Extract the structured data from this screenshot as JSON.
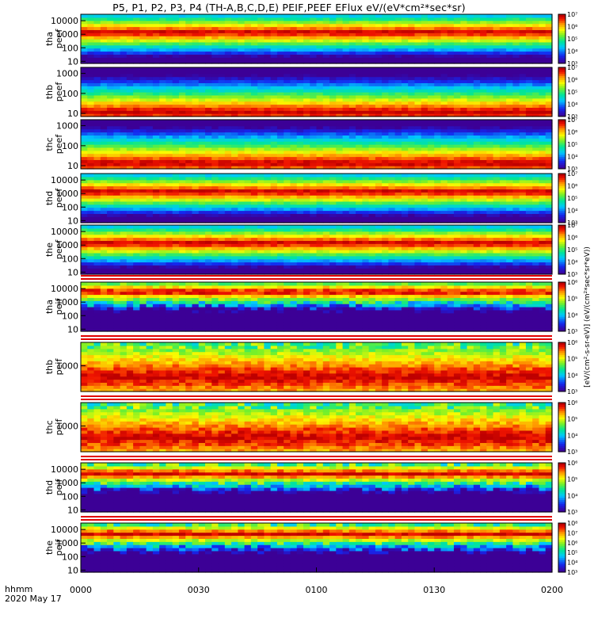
{
  "title": "P5, P1, P2, P3, P4 (TH-A,B,C,D,E) PEIF,PEEF EFlux eV/(eV*cm²*sec*sr)",
  "time_axis": {
    "label_line1": "hhmm",
    "label_line2": "2020 May 17",
    "ticks": [
      "0000",
      "0030",
      "0100",
      "0130",
      "0200"
    ]
  },
  "colorbar_label": "[eV/(cm²-s-sr-eV)] (eV/(cm²*sec*sr*eV))",
  "chart_data": [
    {
      "type": "heatmap",
      "probe": "tha",
      "product": "peef",
      "ylabel": [
        "tha",
        "peef"
      ],
      "yscale": "log",
      "ylim": [
        7,
        30000
      ],
      "yticks": [
        "10",
        "100",
        "1000",
        "10000"
      ],
      "zlim_exp": [
        3,
        7
      ],
      "colorbar_ticks": [
        "10³",
        "10⁴",
        "10⁵",
        "10⁶",
        "10⁷"
      ],
      "peak_energy_eV": 1500
    },
    {
      "type": "heatmap",
      "probe": "thb",
      "product": "peef",
      "ylabel": [
        "thb",
        "peef"
      ],
      "yscale": "log",
      "ylim": [
        7,
        2000
      ],
      "yticks": [
        "10",
        "100",
        "1000"
      ],
      "zlim_exp": [
        3,
        7
      ],
      "colorbar_ticks": [
        "10³",
        "10⁴",
        "10⁵",
        "10⁶",
        "10⁷"
      ],
      "peak_energy_eV": 12
    },
    {
      "type": "heatmap",
      "probe": "thc",
      "product": "peef",
      "ylabel": [
        "thc",
        "peef"
      ],
      "yscale": "log",
      "ylim": [
        7,
        2000
      ],
      "yticks": [
        "10",
        "100",
        "1000"
      ],
      "zlim_exp": [
        3,
        7
      ],
      "colorbar_ticks": [
        "10³",
        "10⁴",
        "10⁵",
        "10⁶",
        "10⁷"
      ],
      "peak_energy_eV": 14
    },
    {
      "type": "heatmap",
      "probe": "thd",
      "product": "peef",
      "ylabel": [
        "thd",
        "peef"
      ],
      "yscale": "log",
      "ylim": [
        7,
        30000
      ],
      "yticks": [
        "10",
        "100",
        "1000",
        "10000"
      ],
      "zlim_exp": [
        3,
        7
      ],
      "colorbar_ticks": [
        "10³",
        "10⁴",
        "10⁵",
        "10⁶",
        "10⁷"
      ],
      "peak_energy_eV": 1500
    },
    {
      "type": "heatmap",
      "probe": "the",
      "product": "peef",
      "ylabel": [
        "the",
        "peef"
      ],
      "yscale": "log",
      "ylim": [
        7,
        30000
      ],
      "yticks": [
        "10",
        "100",
        "1000",
        "10000"
      ],
      "zlim_exp": [
        3,
        7
      ],
      "colorbar_ticks": [
        "10³",
        "10⁴",
        "10⁵",
        "10⁶",
        "10⁷"
      ],
      "peak_energy_eV": 1500
    },
    {
      "type": "heatmap",
      "probe": "tha",
      "product": "peif",
      "ylabel": [
        "tha",
        "peif"
      ],
      "yscale": "log",
      "ylim": [
        7,
        30000
      ],
      "yticks": [
        "10",
        "100",
        "1000",
        "10000"
      ],
      "zlim_exp": [
        3,
        6
      ],
      "colorbar_ticks": [
        "10³",
        "10⁴",
        "10⁵",
        "10⁶"
      ],
      "peak_energy_eV": 6000
    },
    {
      "type": "heatmap",
      "probe": "thb",
      "product": "peif",
      "ylabel": [
        "thb",
        "peif"
      ],
      "yscale": "log",
      "ylim": [
        300,
        3000
      ],
      "yticks": [
        "1000"
      ],
      "zlim_exp": [
        3,
        6
      ],
      "colorbar_ticks": [
        "10³",
        "10⁴",
        "10⁵",
        "10⁶"
      ],
      "peak_energy_eV": 600
    },
    {
      "type": "heatmap",
      "probe": "thc",
      "product": "peif",
      "ylabel": [
        "thc",
        "peif"
      ],
      "yscale": "log",
      "ylim": [
        300,
        3000
      ],
      "yticks": [
        "1000"
      ],
      "zlim_exp": [
        3,
        6
      ],
      "colorbar_ticks": [
        "10³",
        "10⁴",
        "10⁵",
        "10⁶"
      ],
      "peak_energy_eV": 600
    },
    {
      "type": "heatmap",
      "probe": "thd",
      "product": "peif",
      "ylabel": [
        "thd",
        "peif"
      ],
      "yscale": "log",
      "ylim": [
        7,
        30000
      ],
      "yticks": [
        "10",
        "100",
        "1000",
        "10000"
      ],
      "zlim_exp": [
        3,
        6
      ],
      "colorbar_ticks": [
        "10³",
        "10⁴",
        "10⁵",
        "10⁶"
      ],
      "peak_energy_eV": 5000
    },
    {
      "type": "heatmap",
      "probe": "the",
      "product": "peif",
      "ylabel": [
        "the",
        "peif"
      ],
      "yscale": "log",
      "ylim": [
        7,
        30000
      ],
      "yticks": [
        "10",
        "100",
        "1000",
        "10000"
      ],
      "zlim_exp": [
        3,
        8
      ],
      "colorbar_ticks": [
        "10³",
        "10⁴",
        "10⁵",
        "10⁶",
        "10⁷",
        "10⁸"
      ],
      "peak_energy_eV": 5000
    }
  ]
}
